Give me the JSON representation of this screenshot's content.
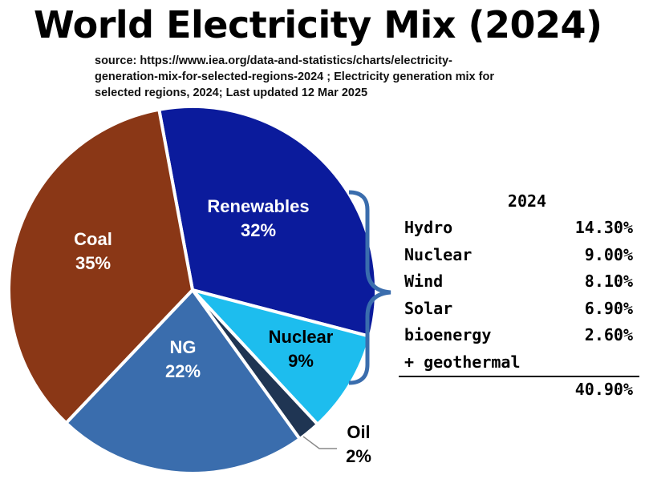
{
  "title": "World Electricity Mix (2024)",
  "source": "source: https://www.iea.org/data-and-statistics/charts/electricity-generation-mix-for-selected-regions-2024 ; Electricity generation mix for selected regions, 2024; Last updated 12 Mar 2025",
  "chart_data": {
    "type": "pie",
    "title": "World Electricity Mix (2024)",
    "slices": [
      {
        "name": "Renewables",
        "value": 32,
        "label": "32%",
        "color": "#0B1B9C"
      },
      {
        "name": "Nuclear",
        "value": 9,
        "label": "9%",
        "color": "#1DBDEE"
      },
      {
        "name": "Oil",
        "value": 2,
        "label": "2%",
        "color": "#1F3553"
      },
      {
        "name": "NG",
        "value": 22,
        "label": "22%",
        "color": "#3A6DAD"
      },
      {
        "name": "Coal",
        "value": 35,
        "label": "35%",
        "color": "#8A3716"
      }
    ]
  },
  "renewables_table": {
    "header": "2024",
    "rows": [
      {
        "name": "Hydro",
        "value": "14.30%"
      },
      {
        "name": "Nuclear",
        "value": "9.00%"
      },
      {
        "name": "Wind",
        "value": "8.10%"
      },
      {
        "name": "Solar",
        "value": "6.90%"
      },
      {
        "name": "bioenergy",
        "value": "2.60%"
      },
      {
        "name": "+ geothermal",
        "value": ""
      }
    ],
    "total": "40.90%"
  },
  "colors": {
    "brace": "#3A6DAD"
  }
}
